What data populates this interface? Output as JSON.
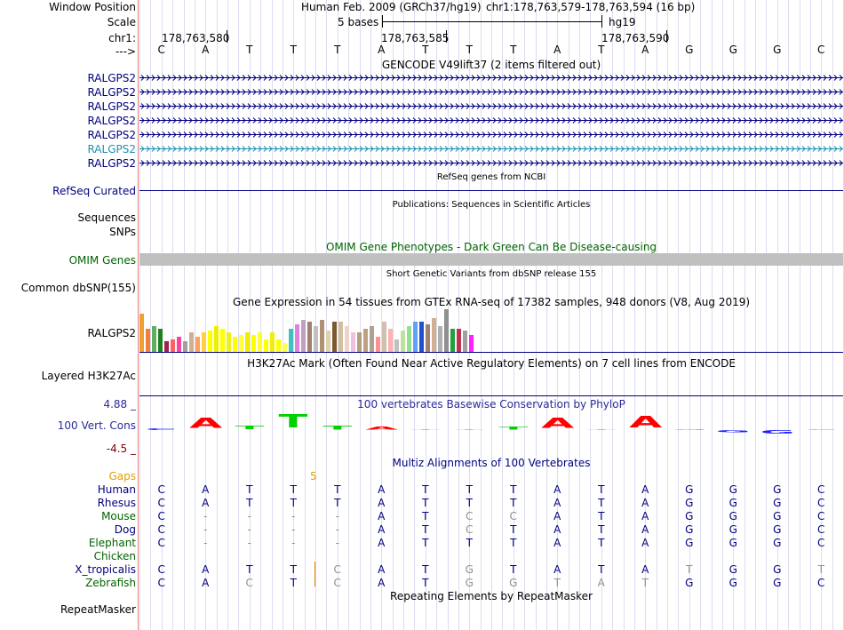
{
  "colors": {
    "navy": "#000080",
    "green": "#006400",
    "gap_orange": "#e0a000",
    "red": "#ff0000",
    "gray": "#b0b0b0",
    "phylop_green": "#00d000",
    "phylop_blue": "#2020ff",
    "teal": "#2090b0",
    "maroon": "#800000"
  },
  "header": {
    "window_position_label": "Window Position",
    "assembly_title": "Human Feb. 2009 (GRCh37/hg19)",
    "coordinates": "chr1:178,763,579-178,763,594 (16 bp)",
    "scale_label": "Scale",
    "scale_text": "5 bases",
    "scale_assembly": "hg19",
    "chrom_label": "chr1:",
    "position_ticks": [
      "178,763,580",
      "178,763,585",
      "178,763,590"
    ],
    "strand_label": "--->",
    "bases": [
      "C",
      "A",
      "T",
      "T",
      "T",
      "A",
      "T",
      "T",
      "T",
      "A",
      "T",
      "A",
      "G",
      "G",
      "G",
      "C"
    ]
  },
  "gencode": {
    "title": "GENCODE V49lift37 (2 items filtered out)",
    "items": [
      {
        "label": "RALGPS2",
        "color": "#000080"
      },
      {
        "label": "RALGPS2",
        "color": "#000080"
      },
      {
        "label": "RALGPS2",
        "color": "#000080"
      },
      {
        "label": "RALGPS2",
        "color": "#000080"
      },
      {
        "label": "RALGPS2",
        "color": "#000080"
      },
      {
        "label": "RALGPS2",
        "color": "#2090b0"
      },
      {
        "label": "RALGPS2",
        "color": "#000080"
      }
    ]
  },
  "refseq": {
    "title": "RefSeq genes from NCBI",
    "label": "RefSeq Curated"
  },
  "publications": {
    "title": "Publications: Sequences in Scientific Articles",
    "label_line1": "Sequences",
    "label_line2": "SNPs"
  },
  "omim": {
    "title": "OMIM Gene Phenotypes - Dark Green Can Be Disease-causing",
    "label": "OMIM Genes"
  },
  "dbsnp": {
    "title": "Short Genetic Variants from dbSNP release 155",
    "label": "Common dbSNP(155)"
  },
  "gtex": {
    "title": "Gene Expression in 54 tissues from GTEx RNA-seq of 17382 samples, 948 donors (V8, Aug 2019)",
    "label": "RALGPS2",
    "tissues": [
      {
        "v": 0.9,
        "c": "#f0a030"
      },
      {
        "v": 0.55,
        "c": "#f08040"
      },
      {
        "v": 0.6,
        "c": "#60b060"
      },
      {
        "v": 0.55,
        "c": "#208020"
      },
      {
        "v": 0.25,
        "c": "#a02050"
      },
      {
        "v": 0.3,
        "c": "#ff6060"
      },
      {
        "v": 0.35,
        "c": "#ff40a0"
      },
      {
        "v": 0.25,
        "c": "#a0a0a0"
      },
      {
        "v": 0.45,
        "c": "#d0b090"
      },
      {
        "v": 0.35,
        "c": "#ffa060"
      },
      {
        "v": 0.45,
        "c": "#ffd040"
      },
      {
        "v": 0.5,
        "c": "#ffff00"
      },
      {
        "v": 0.6,
        "c": "#eeee00"
      },
      {
        "v": 0.55,
        "c": "#ffff00"
      },
      {
        "v": 0.45,
        "c": "#eeee20"
      },
      {
        "v": 0.35,
        "c": "#ffff00"
      },
      {
        "v": 0.4,
        "c": "#ffff40"
      },
      {
        "v": 0.45,
        "c": "#eeee00"
      },
      {
        "v": 0.4,
        "c": "#ffff00"
      },
      {
        "v": 0.45,
        "c": "#ffff30"
      },
      {
        "v": 0.3,
        "c": "#ffff00"
      },
      {
        "v": 0.45,
        "c": "#eeee10"
      },
      {
        "v": 0.3,
        "c": "#ffff00"
      },
      {
        "v": 0.2,
        "c": "#ffff50"
      },
      {
        "v": 0.55,
        "c": "#40c0c0"
      },
      {
        "v": 0.65,
        "c": "#e080e0"
      },
      {
        "v": 0.75,
        "c": "#c0a0c0"
      },
      {
        "v": 0.7,
        "c": "#a08070"
      },
      {
        "v": 0.6,
        "c": "#c0c0c0"
      },
      {
        "v": 0.75,
        "c": "#b09070"
      },
      {
        "v": 0.5,
        "c": "#e0d0b0"
      },
      {
        "v": 0.7,
        "c": "#7a5a30"
      },
      {
        "v": 0.7,
        "c": "#d0c0a0"
      },
      {
        "v": 0.6,
        "c": "#f0d0d0"
      },
      {
        "v": 0.45,
        "c": "#f0c0e0"
      },
      {
        "v": 0.45,
        "c": "#b0a080"
      },
      {
        "v": 0.55,
        "c": "#c0a080"
      },
      {
        "v": 0.6,
        "c": "#b0a090"
      },
      {
        "v": 0.35,
        "c": "#ff9090"
      },
      {
        "v": 0.7,
        "c": "#d0c0b0"
      },
      {
        "v": 0.55,
        "c": "#ffb0b0"
      },
      {
        "v": 0.3,
        "c": "#c0c0c0"
      },
      {
        "v": 0.5,
        "c": "#c0e0a0"
      },
      {
        "v": 0.6,
        "c": "#90e090"
      },
      {
        "v": 0.7,
        "c": "#60a0ff"
      },
      {
        "v": 0.7,
        "c": "#2050d0"
      },
      {
        "v": 0.65,
        "c": "#a08070"
      },
      {
        "v": 0.8,
        "c": "#d0b090"
      },
      {
        "v": 0.6,
        "c": "#b0b0b0"
      },
      {
        "v": 1.0,
        "c": "#909090"
      },
      {
        "v": 0.55,
        "c": "#20a040"
      },
      {
        "v": 0.55,
        "c": "#c03050"
      },
      {
        "v": 0.5,
        "c": "#a0a0a0"
      },
      {
        "v": 0.4,
        "c": "#ff20ff"
      }
    ]
  },
  "h3k27ac": {
    "title": "H3K27Ac Mark (Often Found Near Active Regulatory Elements) on 7 cell lines from ENCODE",
    "label": "Layered H3K27Ac"
  },
  "phylop": {
    "title": "100 vertebrates Basewise Conservation by PhyloP",
    "label": "100 Vert. Cons",
    "ymax": "4.88 _",
    "ymin": "-4.5 _",
    "scores": [
      0.3,
      2.0,
      0.6,
      2.5,
      0.8,
      0.5,
      0.1,
      0.0,
      0.5,
      2.0,
      0.0,
      2.2,
      0.0,
      -0.4,
      -0.6,
      0.0
    ],
    "letters": [
      "C",
      "A",
      "T",
      "T",
      "T",
      "A",
      "T",
      "T",
      "T",
      "A",
      "T",
      "A",
      "G",
      "G",
      "G",
      "C"
    ]
  },
  "multiz": {
    "title": "Multiz Alignments of 100 Vertebrates",
    "gaps_label": "Gaps",
    "gap_count": "5",
    "species": [
      {
        "name": "Human",
        "color": "#000080",
        "bases": [
          "C",
          "A",
          "T",
          "T",
          "T",
          "A",
          "T",
          "T",
          "T",
          "A",
          "T",
          "A",
          "G",
          "G",
          "G",
          "C"
        ]
      },
      {
        "name": "Rhesus",
        "color": "#000080",
        "bases": [
          "C",
          "A",
          "T",
          "T",
          "T",
          "A",
          "T",
          "T",
          "T",
          "A",
          "T",
          "A",
          "G",
          "G",
          "G",
          "C"
        ]
      },
      {
        "name": "Mouse",
        "color": "#006400",
        "bases": [
          "C",
          "-",
          "-",
          "-",
          "-",
          "A",
          "T",
          "C",
          "C",
          "A",
          "T",
          "A",
          "G",
          "G",
          "G",
          "C"
        ]
      },
      {
        "name": "Dog",
        "color": "#000080",
        "bases": [
          "C",
          "-",
          "-",
          "-",
          "-",
          "A",
          "T",
          "C",
          "T",
          "A",
          "T",
          "A",
          "G",
          "G",
          "G",
          "C"
        ]
      },
      {
        "name": "Elephant",
        "color": "#006400",
        "bases": [
          "C",
          "-",
          "-",
          "-",
          "-",
          "A",
          "T",
          "T",
          "T",
          "A",
          "T",
          "A",
          "G",
          "G",
          "G",
          "C"
        ]
      },
      {
        "name": "Chicken",
        "color": "#006400",
        "bases": [
          "",
          "",
          "",
          "",
          "",
          "",
          "",
          "",
          "",
          "",
          "",
          "",
          "",
          "",
          "",
          ""
        ]
      },
      {
        "name": "X_tropicalis",
        "color": "#000080",
        "bases": [
          "C",
          "A",
          "T",
          "T",
          "C",
          "A",
          "T",
          "G",
          "T",
          "A",
          "T",
          "A",
          "T",
          "G",
          "G",
          "T"
        ]
      },
      {
        "name": "Zebrafish",
        "color": "#006400",
        "bases": [
          "C",
          "A",
          "C",
          "T",
          "C",
          "A",
          "T",
          "G",
          "G",
          "T",
          "A",
          "T",
          "G",
          "G",
          "G",
          "C"
        ]
      }
    ]
  },
  "repeatmasker": {
    "title": "Repeating Elements by RepeatMasker",
    "label": "RepeatMasker"
  }
}
